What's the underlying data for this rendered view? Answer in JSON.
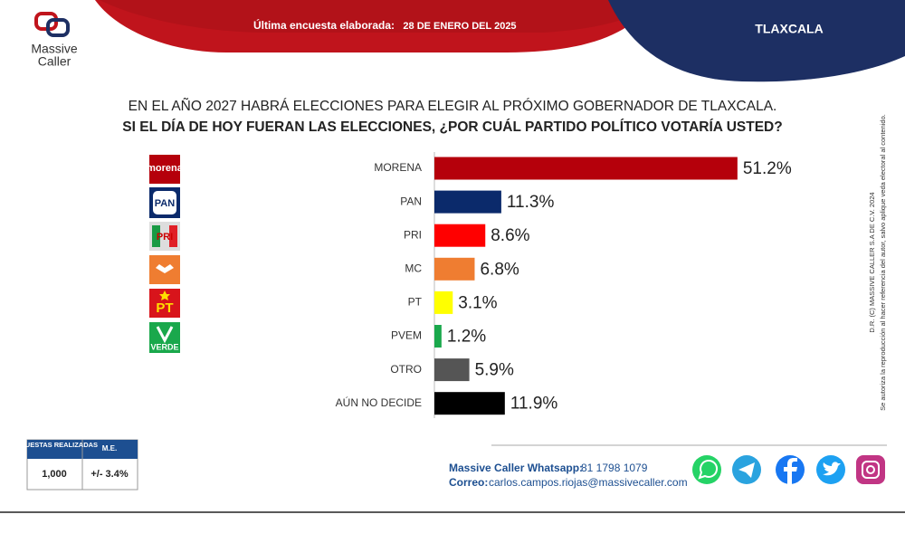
{
  "brand": {
    "line1": "Massive",
    "line2": "Caller"
  },
  "header": {
    "survey_label": "Última encuesta elaborada:",
    "survey_date": "28 DE ENERO DEL 2025",
    "region": "TLAXCALA"
  },
  "party_logos": [
    "morena",
    "PAN",
    "PRI",
    "PT",
    "VERDE"
  ],
  "chart_data": {
    "type": "hbar",
    "title": "EN EL AÑO 2027 HABRÁ ELECCIONES PARA ELEGIR AL PRÓXIMO GOBERNADOR DE TLAXCALA.",
    "subtitle": "SI EL DÍA DE HOY FUERAN LAS ELECCIONES, ¿POR CUÁL PARTIDO POLÍTICO VOTARÍA USTED?",
    "categories": [
      "MORENA",
      "PAN",
      "PRI",
      "MC",
      "PT",
      "PVEM",
      "OTRO",
      "AÚN NO DECIDE"
    ],
    "values": [
      51.2,
      11.3,
      8.6,
      6.8,
      3.1,
      1.2,
      5.9,
      11.9
    ],
    "value_labels": [
      "51.2%",
      "11.3%",
      "8.6%",
      "6.8%",
      "3.1%",
      "1.2%",
      "5.9%",
      "11.9%"
    ],
    "colors": [
      "#b5000b",
      "#0b2a6b",
      "#ff0000",
      "#ef7d31",
      "#ffff00",
      "#1aa84c",
      "#555555",
      "#000000"
    ]
  },
  "table": {
    "headers": [
      "ENCUESTAS REALIZADAS",
      "M.E."
    ],
    "row": [
      "1,000",
      "+/- 3.4%"
    ]
  },
  "contact": {
    "whatsapp_label": "Massive Caller Whatsapp:",
    "whatsapp": "81 1798 1079",
    "email_label": "Correo:",
    "email": "carlos.campos.riojas@massivecaller.com"
  },
  "legal": {
    "line1": "D.R. (C) MASSIVE CALLER S.A DE C.V. 2024",
    "line2": "Se autoriza la reproducción al hacer referencia del autor, salvo aplique veda electoral al contenido."
  }
}
